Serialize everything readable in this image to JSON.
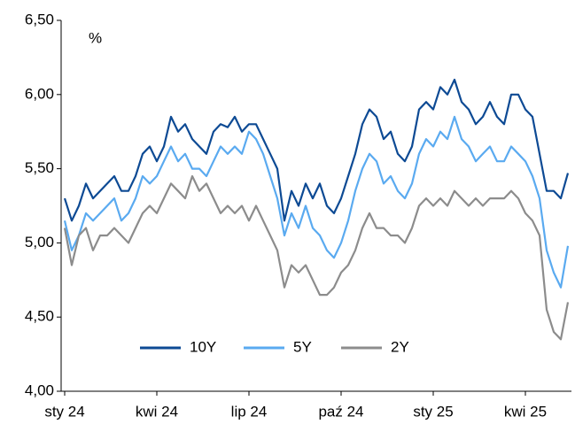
{
  "chart_data": {
    "type": "line",
    "unit_label": "%",
    "categories": [
      "sty 24",
      null,
      null,
      null,
      null,
      null,
      null,
      null,
      null,
      null,
      null,
      null,
      null,
      "kwi 24",
      null,
      null,
      null,
      null,
      null,
      null,
      null,
      null,
      null,
      null,
      null,
      null,
      "lip 24",
      null,
      null,
      null,
      null,
      null,
      null,
      null,
      null,
      null,
      null,
      null,
      null,
      "paź 24",
      null,
      null,
      null,
      null,
      null,
      null,
      null,
      null,
      null,
      null,
      null,
      null,
      "sty 25",
      null,
      null,
      null,
      null,
      null,
      null,
      null,
      null,
      null,
      null,
      null,
      null,
      "kwi 25",
      null,
      null,
      null,
      null,
      null,
      null
    ],
    "series": [
      {
        "name": "10Y",
        "color": "#0d4a94",
        "values": [
          5.3,
          5.15,
          5.25,
          5.4,
          5.3,
          5.35,
          5.4,
          5.45,
          5.35,
          5.35,
          5.45,
          5.6,
          5.65,
          5.55,
          5.65,
          5.85,
          5.75,
          5.8,
          5.7,
          5.65,
          5.6,
          5.75,
          5.8,
          5.78,
          5.85,
          5.75,
          5.8,
          5.8,
          5.7,
          5.6,
          5.5,
          5.15,
          5.35,
          5.25,
          5.4,
          5.3,
          5.4,
          5.25,
          5.2,
          5.3,
          5.45,
          5.6,
          5.8,
          5.9,
          5.85,
          5.7,
          5.75,
          5.6,
          5.55,
          5.65,
          5.9,
          5.95,
          5.9,
          6.05,
          6.0,
          6.1,
          5.95,
          5.9,
          5.8,
          5.85,
          5.95,
          5.85,
          5.8,
          6.0,
          6.0,
          5.9,
          5.85,
          5.6,
          5.35,
          5.35,
          5.3,
          5.47
        ]
      },
      {
        "name": "5Y",
        "color": "#5aaaf0",
        "values": [
          5.15,
          4.95,
          5.05,
          5.2,
          5.15,
          5.2,
          5.25,
          5.3,
          5.15,
          5.2,
          5.3,
          5.45,
          5.4,
          5.45,
          5.55,
          5.65,
          5.55,
          5.6,
          5.5,
          5.5,
          5.45,
          5.55,
          5.65,
          5.6,
          5.65,
          5.6,
          5.75,
          5.7,
          5.6,
          5.45,
          5.3,
          5.05,
          5.2,
          5.1,
          5.25,
          5.1,
          5.05,
          4.95,
          4.9,
          5.0,
          5.15,
          5.35,
          5.5,
          5.6,
          5.55,
          5.4,
          5.45,
          5.35,
          5.3,
          5.4,
          5.6,
          5.7,
          5.65,
          5.75,
          5.7,
          5.85,
          5.7,
          5.65,
          5.55,
          5.6,
          5.65,
          5.55,
          5.55,
          5.65,
          5.6,
          5.55,
          5.45,
          5.3,
          4.95,
          4.8,
          4.7,
          4.98
        ]
      },
      {
        "name": "2Y",
        "color": "#8c8c8c",
        "values": [
          5.1,
          4.85,
          5.05,
          5.1,
          4.95,
          5.05,
          5.05,
          5.1,
          5.05,
          5.0,
          5.1,
          5.2,
          5.25,
          5.2,
          5.3,
          5.4,
          5.35,
          5.3,
          5.45,
          5.35,
          5.4,
          5.3,
          5.2,
          5.25,
          5.2,
          5.25,
          5.15,
          5.25,
          5.15,
          5.05,
          4.95,
          4.7,
          4.85,
          4.8,
          4.85,
          4.75,
          4.65,
          4.65,
          4.7,
          4.8,
          4.85,
          4.95,
          5.1,
          5.2,
          5.1,
          5.1,
          5.05,
          5.05,
          5.0,
          5.1,
          5.25,
          5.3,
          5.25,
          5.3,
          5.25,
          5.35,
          5.3,
          5.25,
          5.3,
          5.25,
          5.3,
          5.3,
          5.3,
          5.35,
          5.3,
          5.2,
          5.15,
          5.05,
          4.55,
          4.4,
          4.35,
          4.6
        ]
      }
    ],
    "ylim": [
      4.0,
      6.5
    ],
    "yticks": [
      {
        "value": 4.0,
        "label": "4,00"
      },
      {
        "value": 4.5,
        "label": "4,50"
      },
      {
        "value": 5.0,
        "label": "5,00"
      },
      {
        "value": 5.5,
        "label": "5,50"
      },
      {
        "value": 6.0,
        "label": "6,00"
      },
      {
        "value": 6.5,
        "label": "6,50"
      }
    ],
    "grid": false
  }
}
